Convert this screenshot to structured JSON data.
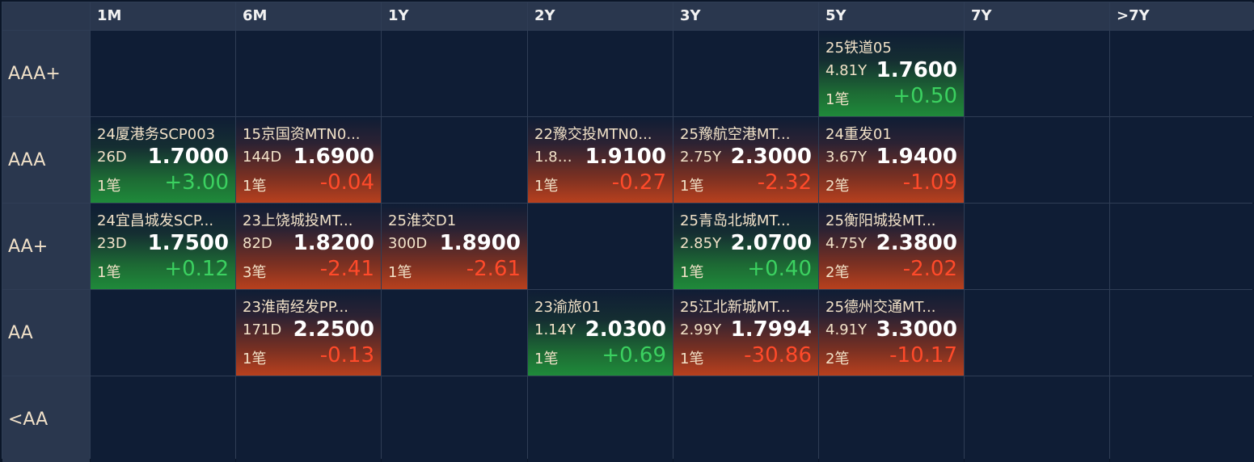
{
  "columns": [
    "",
    "1M",
    "6M",
    "1Y",
    "2Y",
    "3Y",
    "5Y",
    "7Y",
    ">7Y"
  ],
  "rows": [
    {
      "label": "AAA+",
      "cells": [
        null,
        null,
        null,
        null,
        null,
        {
          "name": "25铁道05",
          "tenor": "4.81Y",
          "price": "1.7600",
          "count": "1笔",
          "change": "+0.50",
          "dir": "up"
        },
        null,
        null
      ]
    },
    {
      "label": "AAA",
      "cells": [
        {
          "name": "24厦港务SCP003",
          "tenor": "26D",
          "price": "1.7000",
          "count": "1笔",
          "change": "+3.00",
          "dir": "up"
        },
        {
          "name": "15京国资MTN0...",
          "tenor": "144D",
          "price": "1.6900",
          "count": "1笔",
          "change": "-0.04",
          "dir": "down"
        },
        null,
        {
          "name": "22豫交投MTN0...",
          "tenor": "1.81...",
          "price": "1.9100",
          "count": "1笔",
          "change": "-0.27",
          "dir": "down"
        },
        {
          "name": "25豫航空港MT...",
          "tenor": "2.75Y",
          "price": "2.3000",
          "count": "1笔",
          "change": "-2.32",
          "dir": "down"
        },
        {
          "name": "24重发01",
          "tenor": "3.67Y",
          "price": "1.9400",
          "count": "2笔",
          "change": "-1.09",
          "dir": "down"
        },
        null,
        null
      ]
    },
    {
      "label": "AA+",
      "cells": [
        {
          "name": "24宜昌城发SCP...",
          "tenor": "23D",
          "price": "1.7500",
          "count": "1笔",
          "change": "+0.12",
          "dir": "up"
        },
        {
          "name": "23上饶城投MT...",
          "tenor": "82D",
          "price": "1.8200",
          "count": "3笔",
          "change": "-2.41",
          "dir": "down"
        },
        {
          "name": "25淮交D1",
          "tenor": "300D",
          "price": "1.8900",
          "count": "1笔",
          "change": "-2.61",
          "dir": "down"
        },
        null,
        {
          "name": "25青岛北城MT...",
          "tenor": "2.85Y",
          "price": "2.0700",
          "count": "1笔",
          "change": "+0.40",
          "dir": "up"
        },
        {
          "name": "25衡阳城投MT...",
          "tenor": "4.75Y",
          "price": "2.3800",
          "count": "2笔",
          "change": "-2.02",
          "dir": "down"
        },
        null,
        null
      ]
    },
    {
      "label": "AA",
      "cells": [
        null,
        {
          "name": "23淮南经发PP...",
          "tenor": "171D",
          "price": "2.2500",
          "count": "1笔",
          "change": "-0.13",
          "dir": "down"
        },
        null,
        {
          "name": "23渝旅01",
          "tenor": "1.14Y",
          "price": "2.0300",
          "count": "1笔",
          "change": "+0.69",
          "dir": "up"
        },
        {
          "name": "25江北新城MT...",
          "tenor": "2.99Y",
          "price": "1.7994",
          "count": "1笔",
          "change": "-30.86",
          "dir": "down"
        },
        {
          "name": "25德州交通MT...",
          "tenor": "4.91Y",
          "price": "3.3000",
          "count": "2笔",
          "change": "-10.17",
          "dir": "down"
        },
        null,
        null
      ]
    },
    {
      "label": "<AA",
      "cells": [
        null,
        null,
        null,
        null,
        null,
        null,
        null,
        null
      ]
    }
  ]
}
